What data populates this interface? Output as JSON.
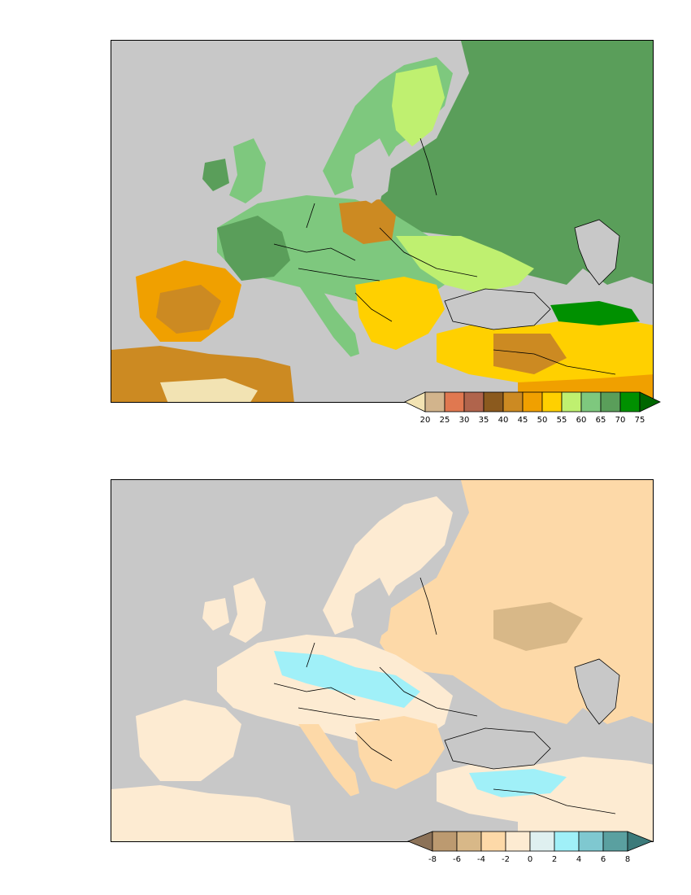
{
  "maps": [
    {
      "id": "top",
      "legend": {
        "colors": [
          "#f2e3b3",
          "#d2b48c",
          "#e07850",
          "#b0644c",
          "#8b5a1e",
          "#cc8a22",
          "#f0a000",
          "#ffd000",
          "#bff070",
          "#7ec87e",
          "#5a9e5a",
          "#009000",
          "#006600"
        ],
        "ticks": [
          "20",
          "25",
          "30",
          "35",
          "40",
          "45",
          "50",
          "55",
          "60",
          "65",
          "70",
          "75"
        ]
      }
    },
    {
      "id": "bottom",
      "legend": {
        "colors": [
          "#8c7258",
          "#bc9a70",
          "#d8b888",
          "#fdd9a8",
          "#fdebd2",
          "#dff0f0",
          "#a0f0f8",
          "#7fc8d0",
          "#5aa0a0",
          "#3c7a7a"
        ],
        "ticks": [
          "-8",
          "-6",
          "-4",
          "-2",
          "0",
          "2",
          "4",
          "6",
          "8"
        ]
      }
    }
  ]
}
